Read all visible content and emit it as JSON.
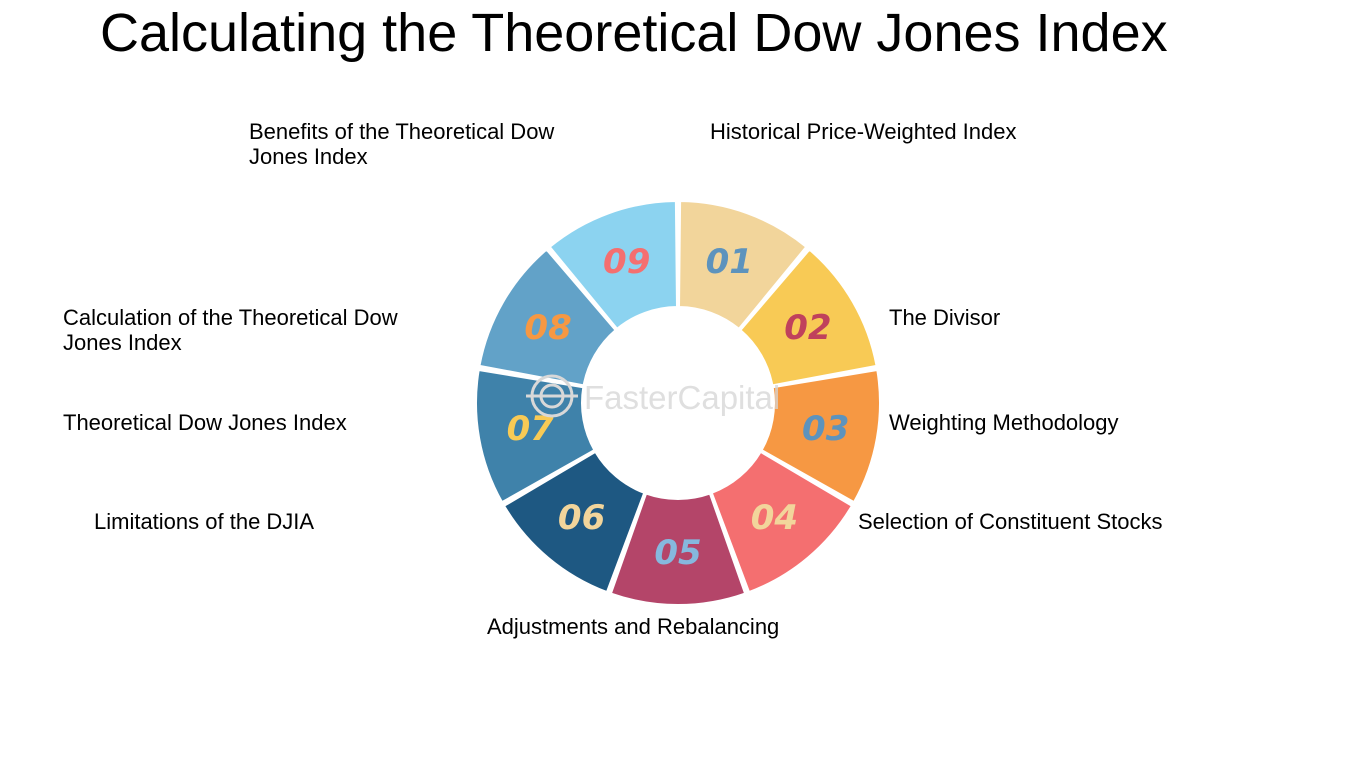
{
  "title": "Calculating the Theoretical Dow Jones Index",
  "watermark": "FasterCapital",
  "segments": [
    {
      "number": "01",
      "label": "Historical Price-Weighted Index",
      "color": "#f2d59b",
      "number_color": "#5d93bd"
    },
    {
      "number": "02",
      "label": "The Divisor",
      "color": "#f8ca55",
      "number_color": "#c0415c"
    },
    {
      "number": "03",
      "label": "Weighting Methodology",
      "color": "#f69843",
      "number_color": "#5d93bd"
    },
    {
      "number": "04",
      "label": "Selection of Constituent Stocks",
      "color": "#f46f70",
      "number_color": "#f2d59b"
    },
    {
      "number": "05",
      "label": "Adjustments and Rebalancing",
      "color": "#b44569",
      "number_color": "#86b8de"
    },
    {
      "number": "06",
      "label": "Limitations of the DJIA",
      "color": "#1e5882",
      "number_color": "#f2d59b"
    },
    {
      "number": "07",
      "label": "Theoretical Dow Jones Index",
      "color": "#3f82aa",
      "number_color": "#f8ca55"
    },
    {
      "number": "08",
      "label": "Calculation of the Theoretical Dow Jones Index",
      "color": "#62a2c8",
      "number_color": "#f69843"
    },
    {
      "number": "09",
      "label": "Benefits of the Theoretical Dow Jones Index",
      "color": "#8cd3f0",
      "number_color": "#f46f70"
    }
  ]
}
